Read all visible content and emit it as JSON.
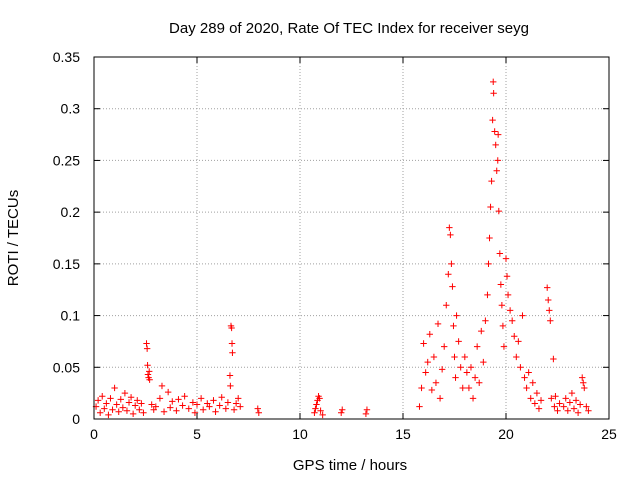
{
  "chart_data": {
    "type": "scatter",
    "title": "Day 289 of 2020, Rate Of TEC Index for receiver seyg",
    "xlabel": "GPS time / hours",
    "ylabel": "ROTI / TECUs",
    "xlim": [
      0,
      25
    ],
    "ylim": [
      0,
      0.35
    ],
    "xticks": [
      0,
      5,
      10,
      15,
      20,
      25
    ],
    "xtick_labels": [
      "0",
      "5",
      "10",
      "15",
      "20",
      "25"
    ],
    "yticks": [
      0,
      0.05,
      0.1,
      0.15,
      0.2,
      0.25,
      0.3,
      0.35
    ],
    "ytick_labels": [
      "0",
      "0.05",
      "0.1",
      "0.15",
      "0.2",
      "0.25",
      "0.3",
      "0.35"
    ],
    "grid": true,
    "marker": "+",
    "colors": {
      "points": "#ff0000",
      "grid": "#a0a0a0",
      "axes": "#000000"
    },
    "series": [
      {
        "name": "ROTI",
        "points": [
          [
            0.1,
            0.012
          ],
          [
            0.2,
            0.018
          ],
          [
            0.3,
            0.006
          ],
          [
            0.4,
            0.022
          ],
          [
            0.5,
            0.01
          ],
          [
            0.6,
            0.015
          ],
          [
            0.7,
            0.004
          ],
          [
            0.8,
            0.02
          ],
          [
            0.9,
            0.009
          ],
          [
            1.0,
            0.03
          ],
          [
            1.1,
            0.014
          ],
          [
            1.2,
            0.007
          ],
          [
            1.3,
            0.019
          ],
          [
            1.4,
            0.011
          ],
          [
            1.5,
            0.025
          ],
          [
            1.6,
            0.008
          ],
          [
            1.7,
            0.016
          ],
          [
            1.8,
            0.021
          ],
          [
            1.9,
            0.005
          ],
          [
            2.0,
            0.013
          ],
          [
            2.1,
            0.018
          ],
          [
            2.2,
            0.009
          ],
          [
            2.3,
            0.015
          ],
          [
            2.4,
            0.006
          ],
          [
            2.55,
            0.073
          ],
          [
            2.58,
            0.068
          ],
          [
            2.6,
            0.052
          ],
          [
            2.62,
            0.043
          ],
          [
            2.65,
            0.04
          ],
          [
            2.7,
            0.038
          ],
          [
            2.68,
            0.046
          ],
          [
            2.8,
            0.014
          ],
          [
            2.9,
            0.009
          ],
          [
            3.0,
            0.012
          ],
          [
            3.2,
            0.02
          ],
          [
            3.3,
            0.032
          ],
          [
            3.4,
            0.007
          ],
          [
            3.6,
            0.026
          ],
          [
            3.7,
            0.011
          ],
          [
            3.8,
            0.017
          ],
          [
            4.0,
            0.008
          ],
          [
            4.1,
            0.019
          ],
          [
            4.3,
            0.013
          ],
          [
            4.4,
            0.022
          ],
          [
            4.6,
            0.01
          ],
          [
            4.8,
            0.016
          ],
          [
            4.9,
            0.006
          ],
          [
            5.0,
            0.014
          ],
          [
            5.2,
            0.02
          ],
          [
            5.3,
            0.009
          ],
          [
            5.5,
            0.015
          ],
          [
            5.6,
            0.012
          ],
          [
            5.8,
            0.018
          ],
          [
            5.9,
            0.007
          ],
          [
            6.1,
            0.013
          ],
          [
            6.2,
            0.021
          ],
          [
            6.4,
            0.01
          ],
          [
            6.5,
            0.016
          ],
          [
            6.65,
            0.09
          ],
          [
            6.68,
            0.088
          ],
          [
            6.7,
            0.073
          ],
          [
            6.72,
            0.064
          ],
          [
            6.6,
            0.042
          ],
          [
            6.62,
            0.032
          ],
          [
            6.8,
            0.009
          ],
          [
            6.9,
            0.015
          ],
          [
            7.0,
            0.02
          ],
          [
            7.1,
            0.012
          ],
          [
            7.95,
            0.01
          ],
          [
            8.0,
            0.006
          ],
          [
            10.7,
            0.006
          ],
          [
            10.75,
            0.01
          ],
          [
            10.8,
            0.014
          ],
          [
            10.85,
            0.018
          ],
          [
            10.9,
            0.022
          ],
          [
            10.95,
            0.02
          ],
          [
            11.0,
            0.008
          ],
          [
            11.1,
            0.004
          ],
          [
            12.0,
            0.006
          ],
          [
            12.05,
            0.009
          ],
          [
            13.2,
            0.005
          ],
          [
            13.25,
            0.009
          ],
          [
            15.8,
            0.012
          ],
          [
            15.9,
            0.03
          ],
          [
            16.0,
            0.073
          ],
          [
            16.1,
            0.045
          ],
          [
            16.2,
            0.055
          ],
          [
            16.3,
            0.082
          ],
          [
            16.4,
            0.028
          ],
          [
            16.5,
            0.06
          ],
          [
            16.6,
            0.035
          ],
          [
            16.7,
            0.092
          ],
          [
            16.8,
            0.02
          ],
          [
            16.9,
            0.048
          ],
          [
            17.0,
            0.07
          ],
          [
            17.1,
            0.11
          ],
          [
            17.2,
            0.14
          ],
          [
            17.25,
            0.185
          ],
          [
            17.3,
            0.178
          ],
          [
            17.35,
            0.15
          ],
          [
            17.4,
            0.128
          ],
          [
            17.45,
            0.09
          ],
          [
            17.5,
            0.06
          ],
          [
            17.55,
            0.04
          ],
          [
            17.6,
            0.1
          ],
          [
            17.7,
            0.075
          ],
          [
            17.8,
            0.05
          ],
          [
            17.9,
            0.03
          ],
          [
            18.0,
            0.06
          ],
          [
            18.1,
            0.045
          ],
          [
            18.2,
            0.03
          ],
          [
            18.3,
            0.05
          ],
          [
            18.4,
            0.02
          ],
          [
            18.5,
            0.04
          ],
          [
            18.6,
            0.07
          ],
          [
            18.7,
            0.035
          ],
          [
            18.8,
            0.085
          ],
          [
            18.9,
            0.055
          ],
          [
            19.0,
            0.095
          ],
          [
            19.1,
            0.12
          ],
          [
            19.15,
            0.15
          ],
          [
            19.2,
            0.175
          ],
          [
            19.25,
            0.205
          ],
          [
            19.3,
            0.23
          ],
          [
            19.35,
            0.289
          ],
          [
            19.38,
            0.326
          ],
          [
            19.4,
            0.315
          ],
          [
            19.45,
            0.278
          ],
          [
            19.5,
            0.265
          ],
          [
            19.55,
            0.24
          ],
          [
            19.6,
            0.25
          ],
          [
            19.62,
            0.275
          ],
          [
            19.65,
            0.201
          ],
          [
            19.7,
            0.16
          ],
          [
            19.75,
            0.13
          ],
          [
            19.8,
            0.11
          ],
          [
            19.85,
            0.09
          ],
          [
            19.9,
            0.07
          ],
          [
            20.0,
            0.155
          ],
          [
            20.05,
            0.138
          ],
          [
            20.1,
            0.12
          ],
          [
            20.2,
            0.105
          ],
          [
            20.3,
            0.095
          ],
          [
            20.4,
            0.08
          ],
          [
            20.5,
            0.06
          ],
          [
            20.6,
            0.075
          ],
          [
            20.7,
            0.05
          ],
          [
            20.8,
            0.1
          ],
          [
            20.9,
            0.04
          ],
          [
            21.0,
            0.03
          ],
          [
            21.1,
            0.045
          ],
          [
            21.2,
            0.02
          ],
          [
            21.3,
            0.035
          ],
          [
            21.4,
            0.015
          ],
          [
            21.5,
            0.025
          ],
          [
            21.6,
            0.01
          ],
          [
            21.7,
            0.018
          ],
          [
            22.0,
            0.127
          ],
          [
            22.05,
            0.115
          ],
          [
            22.1,
            0.105
          ],
          [
            22.15,
            0.095
          ],
          [
            22.2,
            0.02
          ],
          [
            22.3,
            0.058
          ],
          [
            22.35,
            0.012
          ],
          [
            22.4,
            0.022
          ],
          [
            22.5,
            0.008
          ],
          [
            22.6,
            0.015
          ],
          [
            22.8,
            0.012
          ],
          [
            22.9,
            0.02
          ],
          [
            23.0,
            0.008
          ],
          [
            23.1,
            0.016
          ],
          [
            23.2,
            0.025
          ],
          [
            23.3,
            0.01
          ],
          [
            23.4,
            0.018
          ],
          [
            23.5,
            0.006
          ],
          [
            23.6,
            0.014
          ],
          [
            23.7,
            0.04
          ],
          [
            23.75,
            0.035
          ],
          [
            23.8,
            0.03
          ],
          [
            23.9,
            0.012
          ],
          [
            24.0,
            0.008
          ]
        ]
      }
    ]
  }
}
